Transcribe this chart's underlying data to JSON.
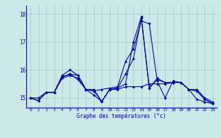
{
  "xlabel": "Graphe des températures (°c)",
  "background_color": "#cce8e8",
  "grid_color": "#aacccc",
  "line_color": "#0000aa",
  "xlim": [
    -0.5,
    23.5
  ],
  "ylim": [
    14.65,
    18.3
  ],
  "yticks": [
    15,
    16,
    17,
    18
  ],
  "xticks": [
    0,
    1,
    2,
    3,
    4,
    5,
    6,
    7,
    8,
    9,
    10,
    11,
    12,
    13,
    14,
    15,
    16,
    17,
    18,
    19,
    20,
    21,
    22,
    23
  ],
  "hours": [
    0,
    1,
    2,
    3,
    4,
    5,
    6,
    7,
    8,
    9,
    10,
    11,
    12,
    13,
    14,
    15,
    16,
    17,
    18,
    19,
    20,
    21,
    22,
    23
  ],
  "lines": [
    [
      15.0,
      14.9,
      15.2,
      15.2,
      15.8,
      16.0,
      15.8,
      15.3,
      15.3,
      14.87,
      15.3,
      15.3,
      15.4,
      15.4,
      15.4,
      15.5,
      15.5,
      15.5,
      15.55,
      15.55,
      15.3,
      15.3,
      15.0,
      14.85
    ],
    [
      15.0,
      15.0,
      15.2,
      15.2,
      15.7,
      15.8,
      15.7,
      15.3,
      15.25,
      15.3,
      15.35,
      15.4,
      16.3,
      16.75,
      17.75,
      17.65,
      15.6,
      15.0,
      15.6,
      15.55,
      15.3,
      14.95,
      14.85,
      14.8
    ],
    [
      15.0,
      14.9,
      15.2,
      15.2,
      15.75,
      15.85,
      15.65,
      15.3,
      15.1,
      14.87,
      15.3,
      15.35,
      15.85,
      16.4,
      17.85,
      15.35,
      15.7,
      15.55,
      15.55,
      15.55,
      15.3,
      15.25,
      14.95,
      14.8
    ],
    [
      15.0,
      14.9,
      15.2,
      15.2,
      15.75,
      15.85,
      15.8,
      15.3,
      15.25,
      14.87,
      15.3,
      15.35,
      15.5,
      17.0,
      17.9,
      15.35,
      15.65,
      15.55,
      15.55,
      15.55,
      15.3,
      15.25,
      14.95,
      14.8
    ]
  ]
}
